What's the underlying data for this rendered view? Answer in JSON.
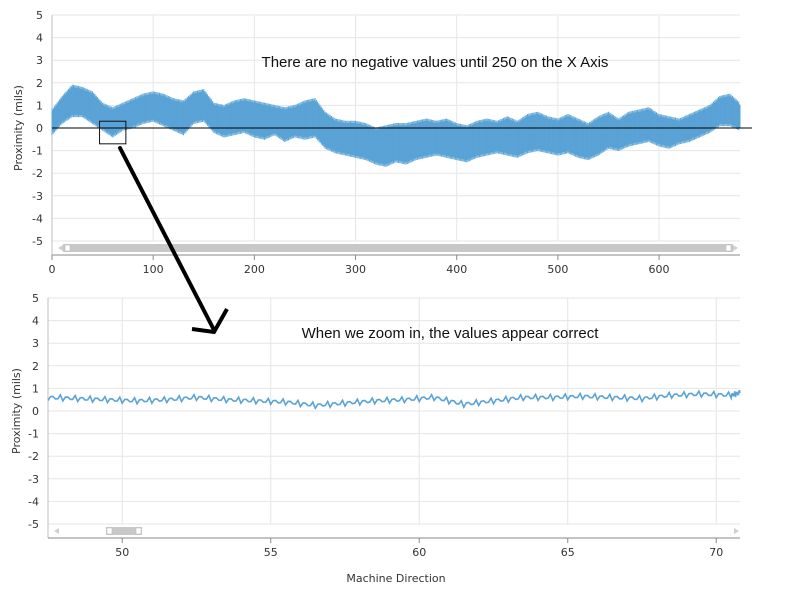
{
  "colors": {
    "series": "#5aa3d6",
    "zero_line": "#000000",
    "grid": "#e6e6e6",
    "scrollbar": "#c8c8c8",
    "arrow": "#000000"
  },
  "chart_data": [
    {
      "type": "line",
      "ylabel": "Proximity (mils)",
      "xlabel": "",
      "xlim": [
        0,
        680
      ],
      "ylim": [
        -5,
        5
      ],
      "x_ticks": [
        0,
        100,
        200,
        300,
        400,
        500,
        600
      ],
      "y_ticks": [
        5,
        4,
        3,
        2,
        1,
        0,
        -1,
        -2,
        -3,
        -4,
        -5
      ],
      "grid": true,
      "zero_line": true,
      "annotation": "There are no negative values until 250 on the X Axis",
      "series": [
        {
          "x": [
            0,
            10,
            20,
            30,
            40,
            50,
            60,
            70,
            80,
            90,
            100,
            110,
            120,
            130,
            140,
            150,
            160,
            170,
            180,
            190,
            200,
            210,
            220,
            230,
            240,
            250,
            260,
            270,
            280,
            290,
            300,
            310,
            320,
            330,
            340,
            350,
            360,
            370,
            380,
            390,
            400,
            410,
            420,
            430,
            440,
            450,
            460,
            470,
            480,
            490,
            500,
            510,
            520,
            530,
            540,
            550,
            560,
            570,
            580,
            590,
            600,
            610,
            620,
            630,
            640,
            650,
            660,
            670,
            680
          ],
          "upper": [
            0.7,
            1.3,
            1.8,
            1.7,
            1.5,
            1.0,
            0.8,
            1.0,
            1.2,
            1.4,
            1.5,
            1.4,
            1.2,
            1.1,
            1.5,
            1.6,
            1.0,
            0.9,
            1.1,
            1.2,
            1.1,
            1.0,
            0.9,
            0.8,
            0.9,
            1.1,
            1.2,
            0.6,
            0.3,
            0.2,
            0.2,
            0.1,
            -0.1,
            0.0,
            0.1,
            0.1,
            0.2,
            0.3,
            0.2,
            0.3,
            0.1,
            0.0,
            0.2,
            0.3,
            0.2,
            0.4,
            0.2,
            0.5,
            0.6,
            0.4,
            0.3,
            0.5,
            0.3,
            0.1,
            0.4,
            0.6,
            0.3,
            0.6,
            0.7,
            0.8,
            0.5,
            0.4,
            0.3,
            0.5,
            0.7,
            0.9,
            1.3,
            1.4,
            1.0
          ],
          "lower": [
            -0.2,
            0.3,
            0.6,
            0.6,
            0.3,
            0.0,
            -0.3,
            0.0,
            0.1,
            0.3,
            0.4,
            0.2,
            0.0,
            -0.2,
            0.3,
            0.4,
            -0.1,
            -0.3,
            -0.2,
            -0.1,
            -0.3,
            -0.4,
            -0.2,
            -0.5,
            -0.3,
            -0.4,
            -0.3,
            -0.8,
            -1.0,
            -1.1,
            -1.2,
            -1.3,
            -1.5,
            -1.6,
            -1.4,
            -1.5,
            -1.3,
            -1.2,
            -1.1,
            -1.2,
            -1.3,
            -1.4,
            -1.2,
            -1.1,
            -1.0,
            -1.1,
            -1.2,
            -1.0,
            -0.9,
            -1.0,
            -1.1,
            -1.0,
            -1.2,
            -1.3,
            -1.1,
            -0.8,
            -0.9,
            -0.7,
            -0.6,
            -0.5,
            -0.7,
            -0.8,
            -0.6,
            -0.5,
            -0.3,
            -0.1,
            0.2,
            0.2,
            0.0
          ]
        }
      ],
      "zoom_box": {
        "x": [
          47,
          73
        ],
        "y": [
          -0.7,
          0.3
        ]
      }
    },
    {
      "type": "line",
      "ylabel": "Proximity (mils)",
      "xlabel": "Machine Direction",
      "xlim": [
        47.5,
        70.8
      ],
      "ylim": [
        -5,
        5
      ],
      "x_ticks": [
        50,
        55,
        60,
        65,
        70
      ],
      "y_ticks": [
        5,
        4,
        3,
        2,
        1,
        0,
        -1,
        -2,
        -3,
        -4,
        -5
      ],
      "grid": true,
      "annotation": "When we zoom in, the values appear correct",
      "series": [
        {
          "x": [
            47.5,
            48.5,
            49.5,
            50.5,
            51.5,
            52.5,
            53.5,
            54.5,
            55.5,
            56.5,
            57.5,
            58.5,
            59.5,
            60.5,
            61.5,
            62.5,
            63.5,
            64.5,
            65.5,
            66.5,
            67.5,
            68.5,
            69.5,
            70.5,
            70.8
          ],
          "y": [
            0.6,
            0.55,
            0.5,
            0.45,
            0.5,
            0.6,
            0.5,
            0.45,
            0.4,
            0.25,
            0.35,
            0.45,
            0.5,
            0.6,
            0.3,
            0.45,
            0.6,
            0.6,
            0.65,
            0.6,
            0.55,
            0.7,
            0.75,
            0.7,
            0.8
          ]
        }
      ]
    }
  ]
}
